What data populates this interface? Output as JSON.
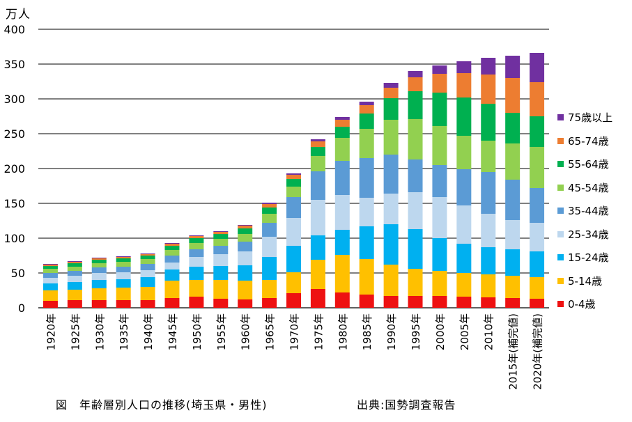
{
  "chart_data": {
    "type": "bar",
    "stacked": true,
    "unit_label": "万人",
    "ylim": [
      0,
      400
    ],
    "yticks": [
      0,
      50,
      100,
      150,
      200,
      250,
      300,
      350,
      400
    ],
    "grid": true,
    "legend_position": "right",
    "categories": [
      "1920年",
      "1925年",
      "1930年",
      "1935年",
      "1940年",
      "1945年",
      "1950年",
      "1955年",
      "1960年",
      "1965年",
      "1970年",
      "1975年",
      "1980年",
      "1985年",
      "1990年",
      "1995年",
      "2000年",
      "2005年",
      "2010年",
      "2015年(補完値)",
      "2020年(補完値)"
    ],
    "series": [
      {
        "name": "0-4歳",
        "color": "#ee1111",
        "values": [
          10,
          11,
          11,
          11,
          11,
          14,
          16,
          13,
          12,
          14,
          21,
          27,
          22,
          19,
          17,
          17,
          17,
          16,
          15,
          14,
          13
        ]
      },
      {
        "name": "5-14歳",
        "color": "#ffc000",
        "values": [
          15,
          15,
          17,
          18,
          19,
          25,
          24,
          27,
          27,
          26,
          30,
          42,
          54,
          51,
          45,
          39,
          36,
          34,
          33,
          32,
          31
        ]
      },
      {
        "name": "15-24歳",
        "color": "#00b0f0",
        "values": [
          10,
          11,
          12,
          12,
          14,
          16,
          19,
          20,
          22,
          33,
          38,
          35,
          36,
          47,
          58,
          57,
          47,
          42,
          39,
          38,
          37
        ]
      },
      {
        "name": "25-34歳",
        "color": "#bdd7ee",
        "values": [
          8,
          9,
          10,
          10,
          10,
          10,
          14,
          17,
          20,
          29,
          40,
          51,
          50,
          41,
          44,
          53,
          59,
          55,
          48,
          42,
          41
        ]
      },
      {
        "name": "35-44歳",
        "color": "#5b9bd5",
        "values": [
          7,
          7,
          8,
          8,
          9,
          10,
          11,
          12,
          14,
          20,
          30,
          41,
          49,
          57,
          56,
          47,
          46,
          52,
          60,
          58,
          50
        ]
      },
      {
        "name": "45-54歳",
        "color": "#92d050",
        "values": [
          6,
          6,
          6,
          7,
          7,
          8,
          9,
          10,
          11,
          13,
          15,
          22,
          33,
          42,
          50,
          58,
          56,
          48,
          45,
          52,
          59
        ]
      },
      {
        "name": "55-64歳",
        "color": "#00b050",
        "values": [
          4,
          5,
          5,
          5,
          5,
          6,
          7,
          7,
          8,
          9,
          11,
          13,
          16,
          22,
          31,
          40,
          48,
          55,
          53,
          44,
          44
        ]
      },
      {
        "name": "65-74歳",
        "color": "#ed7d31",
        "values": [
          2,
          2,
          2,
          2,
          2,
          3,
          3,
          3,
          4,
          5,
          6,
          8,
          10,
          12,
          15,
          20,
          27,
          35,
          42,
          50,
          49
        ]
      },
      {
        "name": "75歳以上",
        "color": "#7030a0",
        "values": [
          1,
          1,
          1,
          1,
          1,
          1,
          1,
          1,
          1,
          2,
          2,
          3,
          4,
          5,
          7,
          9,
          12,
          17,
          24,
          32,
          42
        ]
      }
    ]
  },
  "caption": "図　年齢層別人口の推移(埼玉県・男性)",
  "source": "出典:国勢調査報告"
}
